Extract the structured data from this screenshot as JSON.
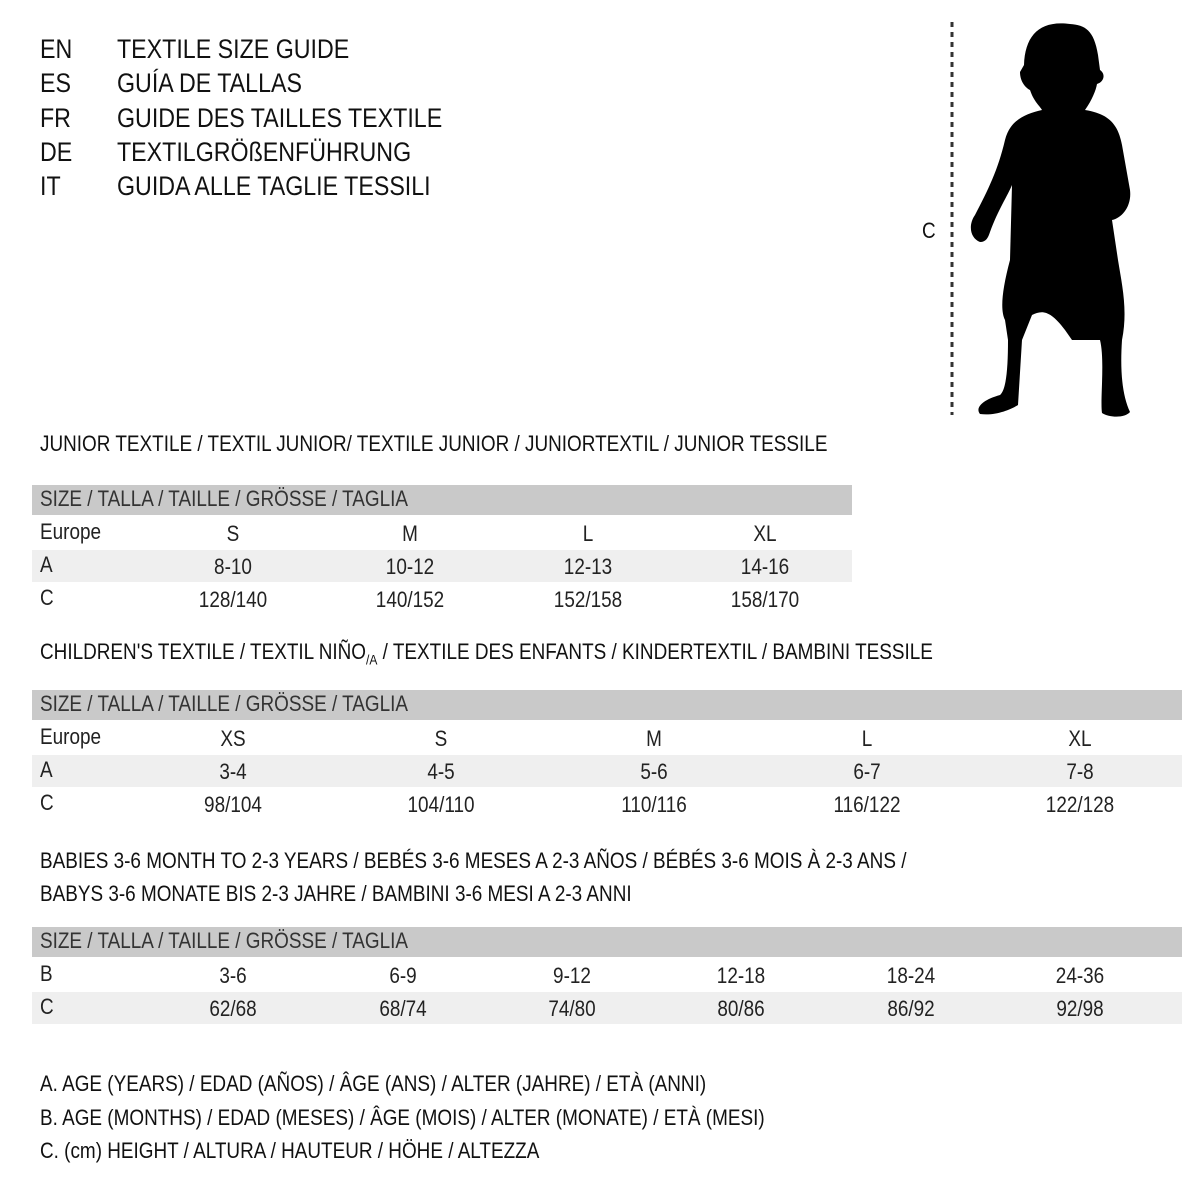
{
  "header": [
    {
      "code": "EN",
      "text": "TEXTILE SIZE GUIDE"
    },
    {
      "code": "ES",
      "text": "GUÍA DE TALLAS"
    },
    {
      "code": "FR",
      "text": "GUIDE DES TAILLES TEXTILE"
    },
    {
      "code": "DE",
      "text": "TEXTILGRÖßENFÜHRUNG"
    },
    {
      "code": "IT",
      "text": "GUIDA ALLE TAGLIE TESSILI"
    }
  ],
  "figure": {
    "measure_label": "C",
    "icon": "child-silhouette-icon"
  },
  "colors": {
    "header_bar": "#c9c9c9",
    "shaded_row": "#efefef",
    "text": "#111111"
  },
  "junior": {
    "title": "JUNIOR TEXTILE / TEXTIL JUNIOR/ TEXTILE JUNIOR / JUNIORTEXTIL / JUNIOR TESSILE",
    "header": "SIZE / TALLA / TAILLE / GRÖSSE / TAGLIA",
    "rows": [
      {
        "label": "Europe",
        "values": [
          "S",
          "M",
          "L",
          "XL"
        ]
      },
      {
        "label": "A",
        "values": [
          "8-10",
          "10-12",
          "12-13",
          "14-16"
        ]
      },
      {
        "label": "C",
        "values": [
          "128/140",
          "140/152",
          "152/158",
          "158/170"
        ]
      }
    ]
  },
  "children": {
    "title_start": "CHILDREN'S TEXTILE / TEXTIL NIÑO",
    "title_sub": "/A",
    "title_end": " / TEXTILE DES ENFANTS / KINDERTEXTIL / BAMBINI TESSILE",
    "header": "SIZE / TALLA / TAILLE / GRÖSSE / TAGLIA",
    "rows": [
      {
        "label": "Europe",
        "values": [
          "XS",
          "S",
          "M",
          "L",
          "XL"
        ]
      },
      {
        "label": "A",
        "values": [
          "3-4",
          "4-5",
          "5-6",
          "6-7",
          "7-8"
        ]
      },
      {
        "label": "C",
        "values": [
          "98/104",
          "104/110",
          "110/116",
          "116/122",
          "122/128"
        ]
      }
    ]
  },
  "babies": {
    "title_line1": "BABIES 3-6 MONTH TO 2-3 YEARS / BEBÉS 3-6 MESES A 2-3 AÑOS / BÉBÉS 3-6 MOIS À 2-3 ANS /",
    "title_line2": "BABYS 3-6 MONATE BIS 2-3 JAHRE / BAMBINI 3-6 MESI A 2-3 ANNI",
    "header": "SIZE / TALLA / TAILLE / GRÖSSE / TAGLIA",
    "rows": [
      {
        "label": "B",
        "values": [
          "3-6",
          "6-9",
          "9-12",
          "12-18",
          "18-24",
          "24-36"
        ]
      },
      {
        "label": "C",
        "values": [
          "62/68",
          "68/74",
          "74/80",
          "80/86",
          "86/92",
          "92/98"
        ]
      }
    ]
  },
  "legend": [
    "A. AGE (YEARS) / EDAD (AÑOS) / ÂGE (ANS) / ALTER (JAHRE) / ETÀ (ANNI)",
    "B. AGE (MONTHS) / EDAD (MESES) / ÂGE (MOIS) / ALTER (MONATE) / ETÀ (MESI)",
    "C. (cm) HEIGHT / ALTURA / HAUTEUR / HÖHE / ALTEZZA"
  ]
}
